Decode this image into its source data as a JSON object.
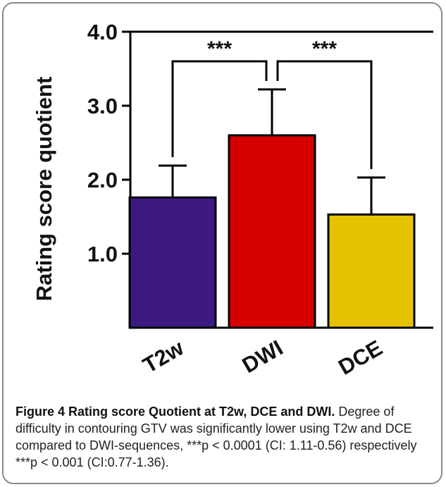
{
  "chart_data": {
    "type": "bar",
    "categories": [
      "T2w",
      "DWI",
      "DCE"
    ],
    "values": [
      1.76,
      2.6,
      1.53
    ],
    "error_upper": [
      2.19,
      3.22,
      2.03
    ],
    "colors": [
      "#3c1a82",
      "#d60000",
      "#e6c300"
    ],
    "ylabel": "Rating score quotient",
    "yticks": [
      "1.0",
      "2.0",
      "3.0",
      "4.0"
    ],
    "ylim": [
      0.0,
      4.0
    ],
    "grid": false,
    "significance": [
      {
        "from": "T2w",
        "to": "DWI",
        "label": "***"
      },
      {
        "from": "DWI",
        "to": "DCE",
        "label": "***"
      }
    ]
  },
  "caption": {
    "title": "Figure 4 Rating score Quotient at T2w, DCE and DWI.",
    "body": "Degree of difficulty in contouring GTV was significantly lower using T2w and DCE compared to DWI-sequences, ***p < 0.0001 (CI: 1.11-0.56) respectively ***p < 0.001 (CI:0.77-1.36)."
  }
}
